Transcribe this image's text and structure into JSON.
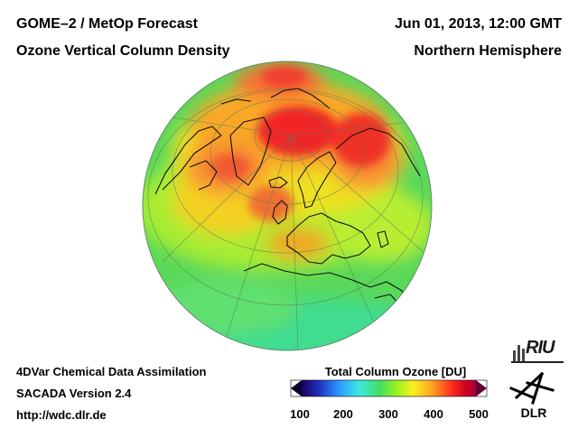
{
  "header": {
    "title_line1": "GOME–2 / MetOp Forecast",
    "title_line2": "Ozone Vertical Column Density",
    "datetime": "Jun 01, 2013, 12:00 GMT",
    "region": "Northern Hemisphere"
  },
  "footer": {
    "line1": "4DVar Chemical Data Assimilation",
    "line2": "SACADA Version 2.4",
    "line3": "http://wdc.dlr.de"
  },
  "colorbar": {
    "title": "Total Column Ozone [DU]",
    "ticks": [
      "100",
      "200",
      "300",
      "400",
      "500"
    ],
    "min": 100,
    "max": 500,
    "stops": [
      "#1a0060",
      "#2030c0",
      "#2aa0ff",
      "#40e8e0",
      "#40e060",
      "#a0f020",
      "#f8f020",
      "#ffa020",
      "#ff3020",
      "#d00020",
      "#a00040"
    ]
  },
  "logos": {
    "riu": "RIU",
    "dlr": "DLR"
  },
  "icons": {
    "riu_logo": "riu-logo-icon",
    "dlr_logo": "dlr-logo-icon"
  }
}
